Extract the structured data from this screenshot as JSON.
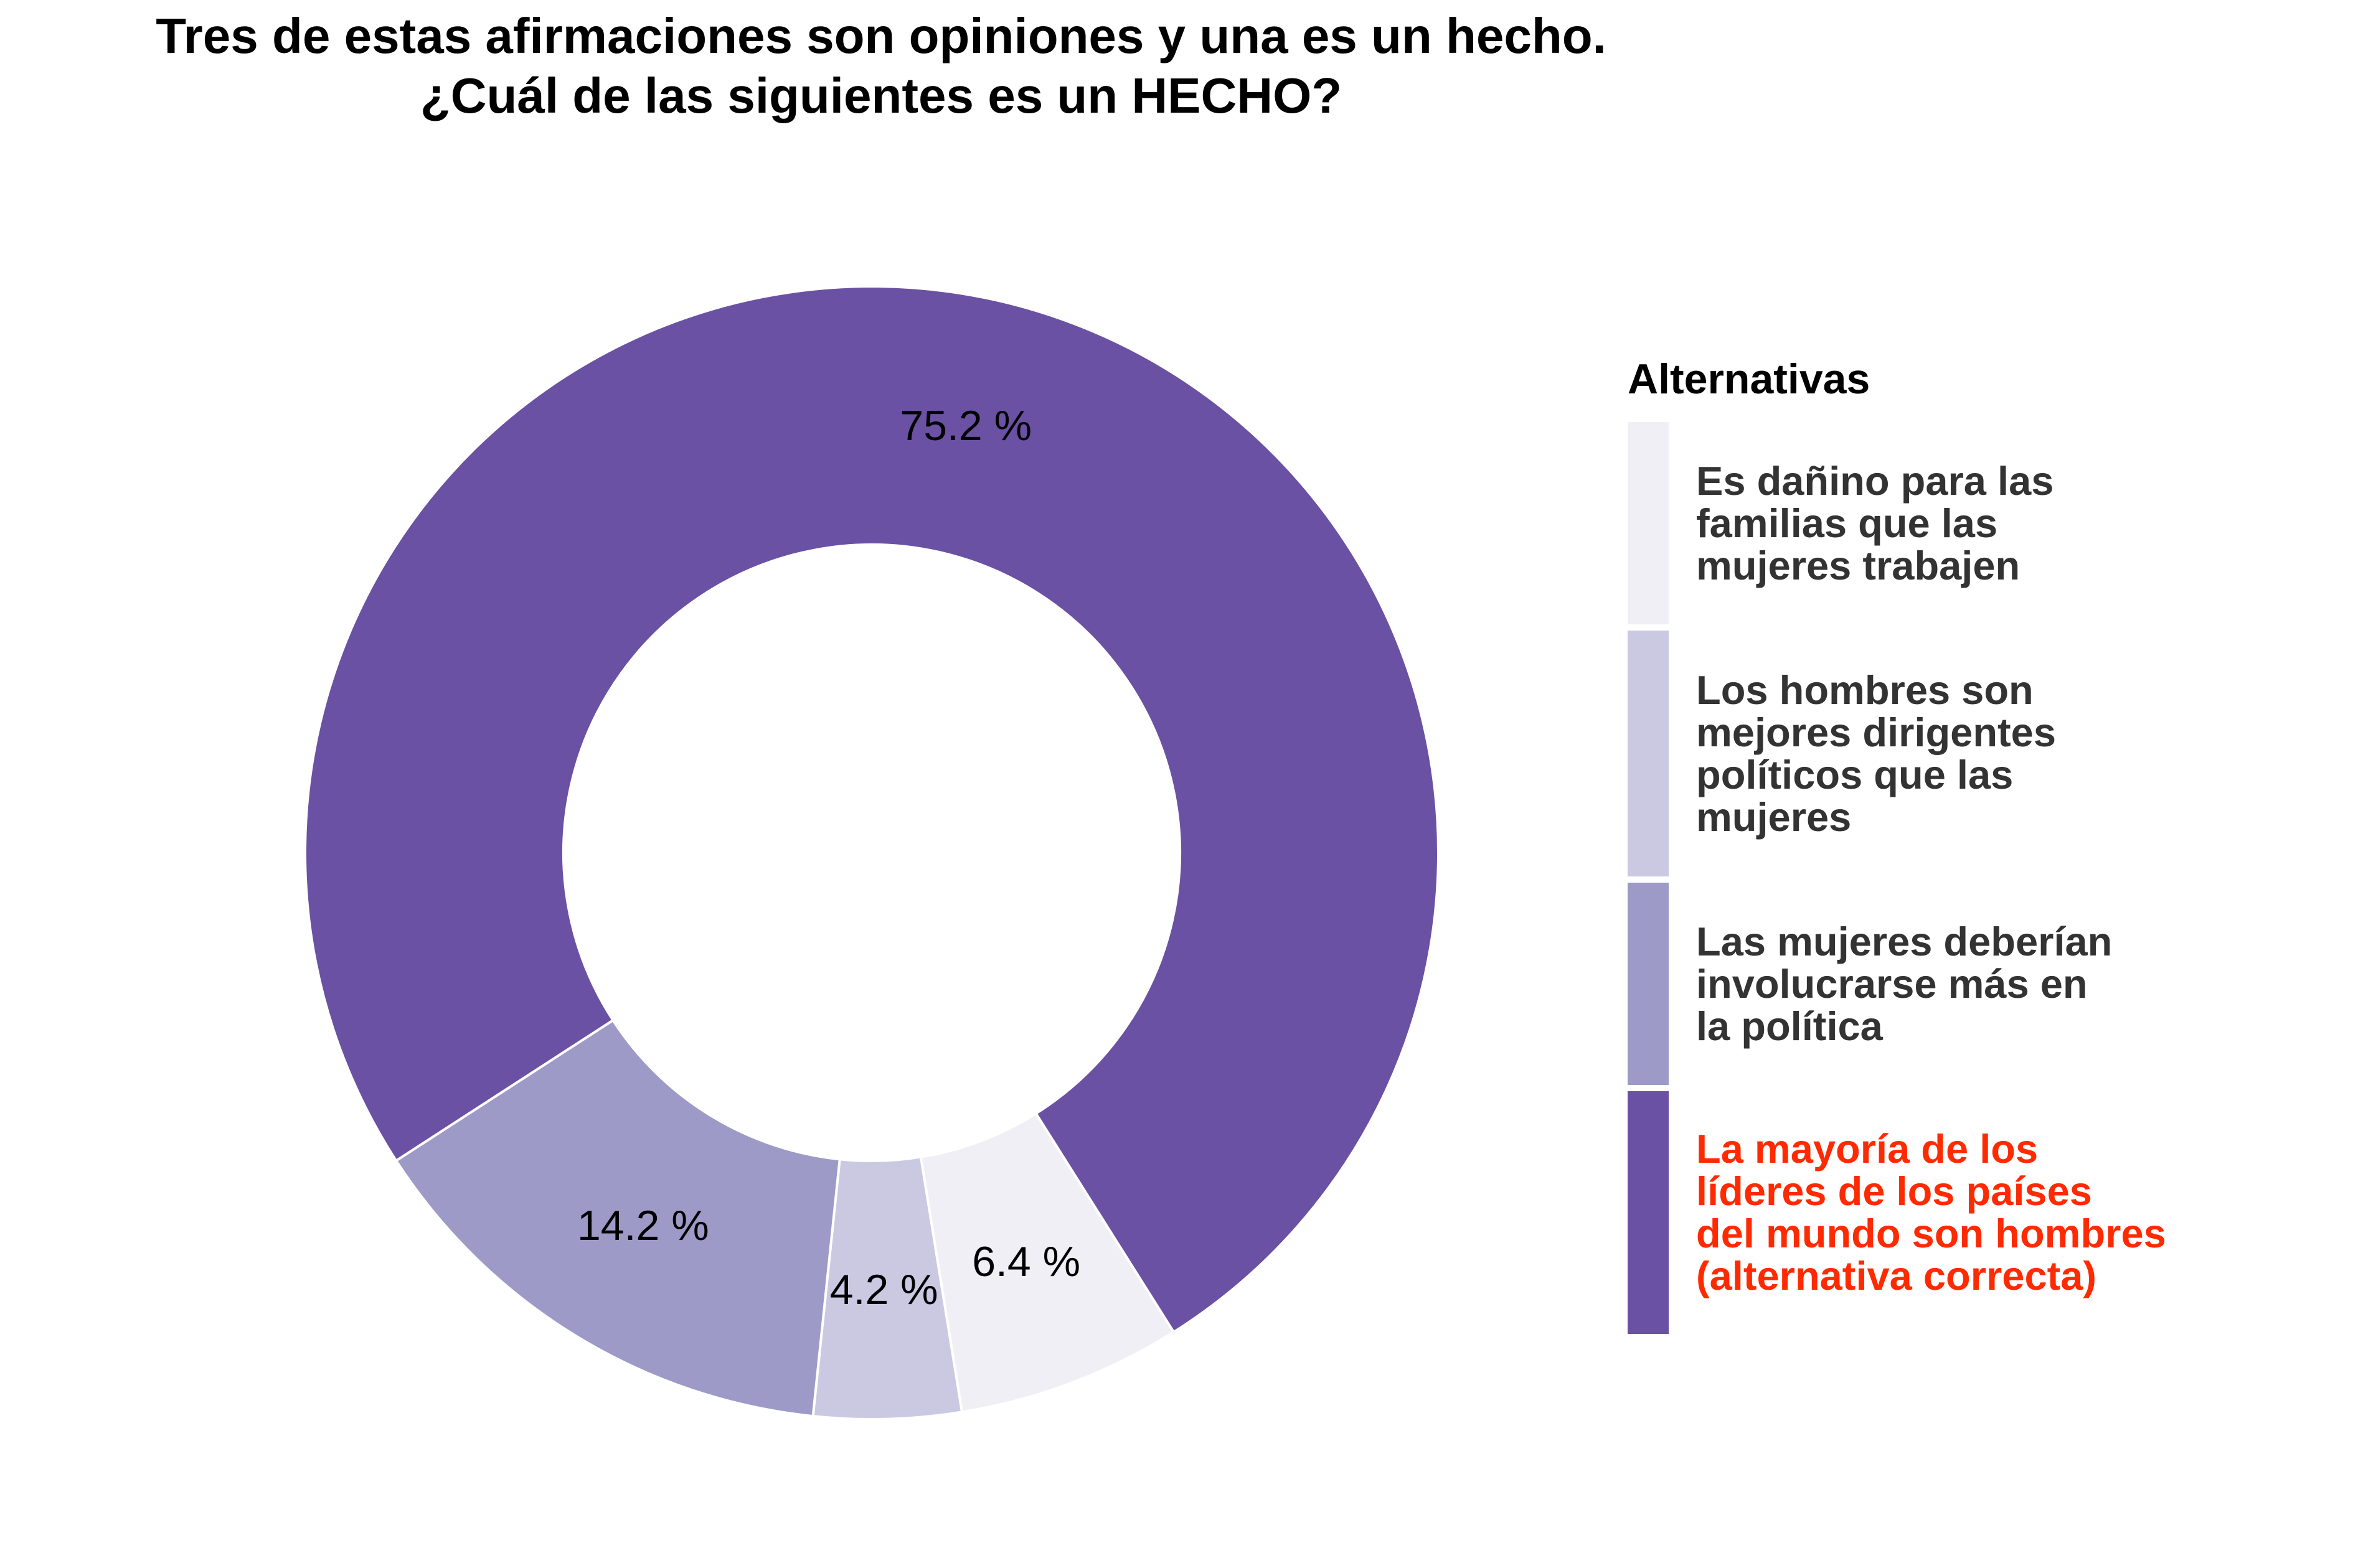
{
  "chart_data": {
    "type": "pie",
    "style": "donut",
    "title_lines": [
      "Tres de estas afirmaciones son opiniones y una es un hecho.",
      "¿Cuál de las siguientes es un HECHO?"
    ],
    "legend_title": "Alternativas",
    "legend_position": "right",
    "slices": [
      {
        "label": "Es dañino para las\nfamilias que las\nmujeres trabajen",
        "value": 6.4,
        "value_label": "6.4 %",
        "color": "#F0EFF6",
        "correct": false
      },
      {
        "label": "Los hombres son\nmejores dirigentes\npolíticos que las\nmujeres",
        "value": 4.2,
        "value_label": "4.2 %",
        "color": "#CBC9E2",
        "correct": false
      },
      {
        "label": "Las mujeres deberían\ninvolucrarse más en\nla política",
        "value": 14.2,
        "value_label": "14.2 %",
        "color": "#9E9AC8",
        "correct": false
      },
      {
        "label": "La mayoría de los\nlíderes de los países\ndel mundo son hombres\n(alternativa correcta)",
        "value": 75.2,
        "value_label": "75.2 %",
        "color": "#6A51A3",
        "correct": true
      }
    ],
    "highlight_color": "#FF2A00"
  }
}
